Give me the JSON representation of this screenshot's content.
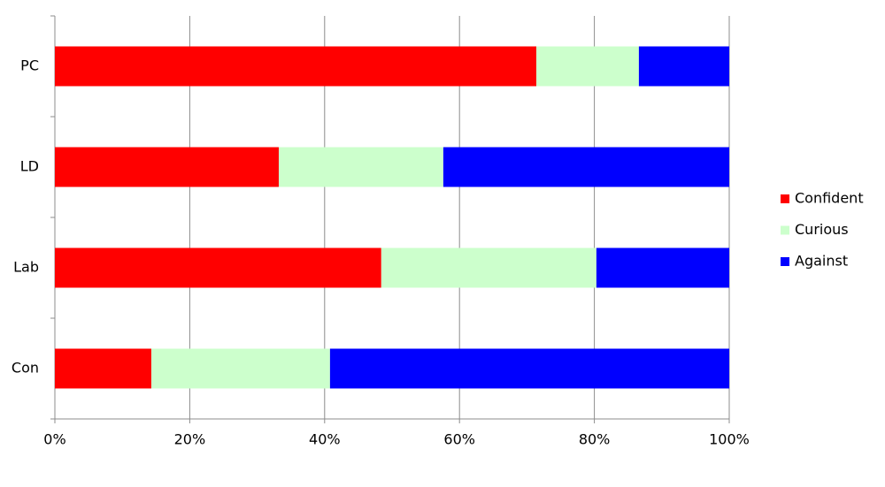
{
  "chart_data": {
    "type": "stacked_bar_horizontal",
    "categories": [
      "PC",
      "LD",
      "Lab",
      "Con"
    ],
    "series": [
      {
        "name": "Confident",
        "color": "#ff0000",
        "values": [
          71.4,
          33.2,
          48.4,
          14.3
        ]
      },
      {
        "name": "Curious",
        "color": "#ccffcc",
        "values": [
          15.2,
          24.4,
          31.9,
          26.5
        ]
      },
      {
        "name": "Against",
        "color": "#0000ff",
        "values": [
          13.4,
          42.4,
          19.7,
          59.2
        ]
      }
    ],
    "xlim": [
      0,
      100
    ],
    "xticks": [
      {
        "value": 0,
        "label": "0%"
      },
      {
        "value": 20,
        "label": "20%"
      },
      {
        "value": 40,
        "label": "40%"
      },
      {
        "value": 60,
        "label": "60%"
      },
      {
        "value": 80,
        "label": "80%"
      },
      {
        "value": 100,
        "label": "100%"
      }
    ],
    "grid": true,
    "legend": "right"
  }
}
